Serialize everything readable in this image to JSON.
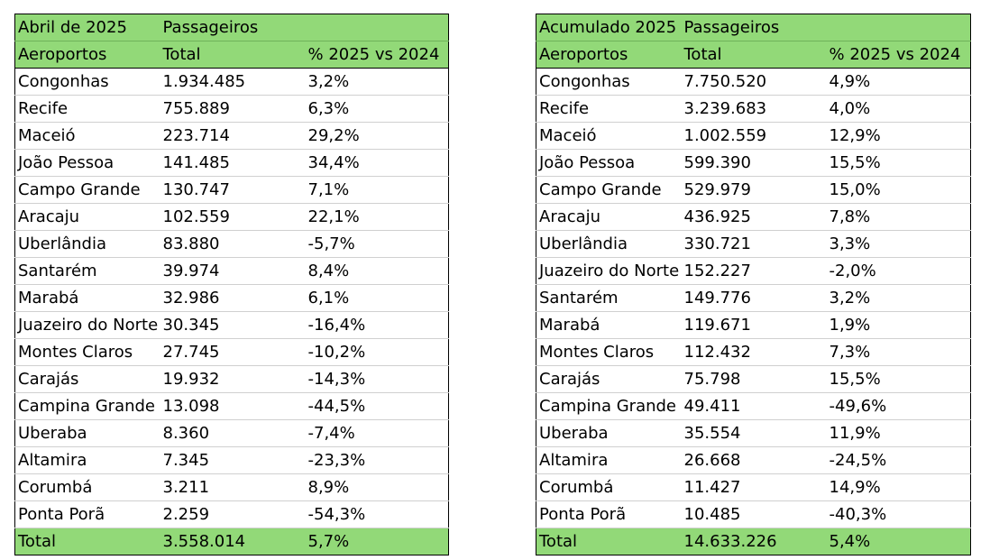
{
  "left_table": {
    "title": "Abril de 2025",
    "group_header": "Passageiros",
    "columns": [
      "Aeroportos",
      "Total",
      "% 2025 vs 2024"
    ],
    "rows": [
      [
        "Congonhas",
        "1.934.485",
        "3,2%"
      ],
      [
        "Recife",
        "755.889",
        "6,3%"
      ],
      [
        "Maceió",
        "223.714",
        "29,2%"
      ],
      [
        "João Pessoa",
        "141.485",
        "34,4%"
      ],
      [
        "Campo Grande",
        "130.747",
        "7,1%"
      ],
      [
        "Aracaju",
        "102.559",
        "22,1%"
      ],
      [
        "Uberlândia",
        "83.880",
        "-5,7%"
      ],
      [
        "Santarém",
        "39.974",
        "8,4%"
      ],
      [
        "Marabá",
        "32.986",
        "6,1%"
      ],
      [
        "Juazeiro do Norte",
        "30.345",
        "-16,4%"
      ],
      [
        "Montes Claros",
        "27.745",
        "-10,2%"
      ],
      [
        "Carajás",
        "19.932",
        "-14,3%"
      ],
      [
        "Campina Grande",
        "13.098",
        "-44,5%"
      ],
      [
        "Uberaba",
        "8.360",
        "-7,4%"
      ],
      [
        "Altamira",
        "7.345",
        "-23,3%"
      ],
      [
        "Corumbá",
        "3.211",
        "8,9%"
      ],
      [
        "Ponta Porã",
        "2.259",
        "-54,3%"
      ]
    ],
    "total": [
      "Total",
      "3.558.014",
      "5,7%"
    ]
  },
  "right_table": {
    "title": "Acumulado 2025",
    "group_header": "Passageiros",
    "columns": [
      "Aeroportos",
      "Total",
      "% 2025 vs 2024"
    ],
    "rows": [
      [
        "Congonhas",
        "7.750.520",
        "4,9%"
      ],
      [
        "Recife",
        "3.239.683",
        "4,0%"
      ],
      [
        "Maceió",
        "1.002.559",
        "12,9%"
      ],
      [
        "João Pessoa",
        "599.390",
        "15,5%"
      ],
      [
        "Campo Grande",
        "529.979",
        "15,0%"
      ],
      [
        "Aracaju",
        "436.925",
        "7,8%"
      ],
      [
        "Uberlândia",
        "330.721",
        "3,3%"
      ],
      [
        "Juazeiro do Norte",
        "152.227",
        "-2,0%"
      ],
      [
        "Santarém",
        "149.776",
        "3,2%"
      ],
      [
        "Marabá",
        "119.671",
        "1,9%"
      ],
      [
        "Montes Claros",
        "112.432",
        "7,3%"
      ],
      [
        "Carajás",
        "75.798",
        "15,5%"
      ],
      [
        "Campina Grande",
        "49.411",
        "-49,6%"
      ],
      [
        "Uberaba",
        "35.554",
        "11,9%"
      ],
      [
        "Altamira",
        "26.668",
        "-24,5%"
      ],
      [
        "Corumbá",
        "11.427",
        "14,9%"
      ],
      [
        "Ponta Porã",
        "10.485",
        "-40,3%"
      ]
    ],
    "total": [
      "Total",
      "14.633.226",
      "5,4%"
    ]
  },
  "colors": {
    "header_fill": "#92d978",
    "border": "#000000",
    "row_divider": "#d0d0d0"
  }
}
